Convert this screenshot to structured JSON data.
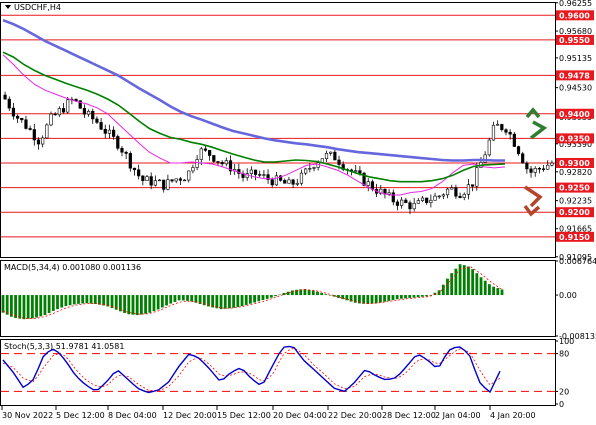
{
  "symbol_label": "USDCHF,H4",
  "colors": {
    "level_line": "#e8181e",
    "level_label_bg": "#e8181e",
    "candle": "#000000",
    "ma_fast": "#e828e8",
    "ma_mid": "#008000",
    "ma_slow": "#6666dd",
    "macd_bar": "#008000",
    "macd_signal": "#ff0000",
    "stoch_main": "#0000cc",
    "stoch_signal": "#ff0000",
    "arrow_up": "#2e7d32",
    "arrow_down": "#b5442a",
    "grid": "#c0c0c0"
  },
  "chart_data": [
    {
      "type": "candlestick",
      "title": "USDCHF,H4",
      "ylim": [
        0.9109,
        0.9625
      ],
      "y_ticks": [
        "0.96255",
        "0.9600",
        "0.95680",
        "0.9550",
        "0.95135",
        "0.9478",
        "0.94530",
        "0.9400",
        "0.93935",
        "0.9350",
        "0.93390",
        "0.9300",
        "0.92820",
        "0.9250",
        "0.92235",
        "0.9200",
        "0.91665",
        "0.9150",
        "0.91095"
      ],
      "levels": [
        {
          "value": 0.96,
          "label": "0.9600"
        },
        {
          "value": 0.955,
          "label": "0.9550"
        },
        {
          "value": 0.9478,
          "label": "0.9478"
        },
        {
          "value": 0.94,
          "label": "0.9400"
        },
        {
          "value": 0.935,
          "label": "0.9350"
        },
        {
          "value": 0.93,
          "label": "0.9300"
        },
        {
          "value": 0.925,
          "label": "0.9250"
        },
        {
          "value": 0.92,
          "label": "0.9200"
        },
        {
          "value": 0.915,
          "label": "0.9150"
        }
      ],
      "x_labels": [
        "30 Nov 2022",
        "5 Dec 12:00",
        "8 Dec 04:00",
        "12 Dec 20:00",
        "15 Dec 12:00",
        "20 Dec 04:00",
        "22 Dec 20:00",
        "28 Dec 12:00",
        "2 Jan 04:00",
        "4 Jan 20:00"
      ],
      "close_path": [
        0.943,
        0.9395,
        0.9372,
        0.9345,
        0.9388,
        0.941,
        0.943,
        0.94,
        0.9385,
        0.936,
        0.9338,
        0.93,
        0.9265,
        0.9262,
        0.9255,
        0.9268,
        0.9275,
        0.9325,
        0.9318,
        0.93,
        0.929,
        0.927,
        0.9278,
        0.9268,
        0.9262,
        0.9255,
        0.927,
        0.9298,
        0.9315,
        0.9312,
        0.929,
        0.9272,
        0.9255,
        0.924,
        0.9225,
        0.9218,
        0.9212,
        0.9225,
        0.9232,
        0.9248,
        0.924,
        0.9258,
        0.9312,
        0.9375,
        0.9372,
        0.933,
        0.928,
        0.929,
        0.93
      ],
      "series": [
        {
          "name": "MA fast",
          "values": [
            0.952,
            0.95,
            0.9478,
            0.946,
            0.9448,
            0.944,
            0.9432,
            0.9425,
            0.942,
            0.9412,
            0.94,
            0.938,
            0.936,
            0.934,
            0.9322,
            0.931,
            0.93,
            0.93,
            0.9302,
            0.93,
            0.9298,
            0.9292,
            0.9285,
            0.9278,
            0.9272,
            0.9268,
            0.9268,
            0.9275,
            0.9285,
            0.9295,
            0.9298,
            0.9292,
            0.9285,
            0.9275,
            0.9262,
            0.925,
            0.924,
            0.9235,
            0.9235,
            0.924,
            0.9242,
            0.9248,
            0.9262,
            0.928,
            0.9295,
            0.9298,
            0.9292,
            0.929,
            0.9292
          ]
        },
        {
          "name": "MA mid",
          "values": [
            0.9525,
            0.9515,
            0.95,
            0.9488,
            0.9478,
            0.947,
            0.9462,
            0.9455,
            0.9448,
            0.944,
            0.943,
            0.9418,
            0.9402,
            0.9385,
            0.937,
            0.936,
            0.9352,
            0.9348,
            0.9342,
            0.9338,
            0.9332,
            0.9325,
            0.9318,
            0.9312,
            0.9306,
            0.9302,
            0.9302,
            0.9304,
            0.9306,
            0.9305,
            0.9303,
            0.9298,
            0.9292,
            0.9285,
            0.9278,
            0.9272,
            0.9268,
            0.9264,
            0.9262,
            0.9262,
            0.9262,
            0.9264,
            0.9268,
            0.9275,
            0.9285,
            0.9293,
            0.9296,
            0.9297,
            0.9298
          ]
        },
        {
          "name": "MA slow",
          "values": [
            0.959,
            0.9582,
            0.9572,
            0.956,
            0.9548,
            0.9538,
            0.9528,
            0.9518,
            0.9508,
            0.9498,
            0.9488,
            0.9478,
            0.9465,
            0.9452,
            0.944,
            0.9428,
            0.9415,
            0.9404,
            0.9395,
            0.9388,
            0.938,
            0.9372,
            0.9365,
            0.936,
            0.9355,
            0.935,
            0.9346,
            0.9343,
            0.934,
            0.9338,
            0.9335,
            0.9332,
            0.9328,
            0.9325,
            0.9322,
            0.932,
            0.9318,
            0.9316,
            0.9314,
            0.9312,
            0.931,
            0.9308,
            0.9306,
            0.9305,
            0.9305,
            0.9306,
            0.9306,
            0.9305,
            0.9305
          ]
        }
      ]
    },
    {
      "type": "bar",
      "title": "MACD(5,34,4) 0.001080 0.001136",
      "ylim": [
        -0.008135,
        0.006764
      ],
      "y_ticks": [
        "0.006764",
        "0.00",
        "-0.008135"
      ],
      "values": [
        -0.0035,
        -0.0045,
        -0.0048,
        -0.0046,
        -0.004,
        -0.003,
        -0.0022,
        -0.0018,
        -0.0016,
        -0.0018,
        -0.0022,
        -0.003,
        -0.0038,
        -0.004,
        -0.0036,
        -0.0028,
        -0.0018,
        -0.001,
        -0.0012,
        -0.0018,
        -0.0024,
        -0.0028,
        -0.0026,
        -0.0022,
        -0.0016,
        -0.001,
        -0.0004,
        0.0004,
        0.001,
        0.0012,
        0.0008,
        0.0002,
        -0.0004,
        -0.001,
        -0.0016,
        -0.0018,
        -0.0016,
        -0.0012,
        -0.0008,
        -0.0006,
        -0.0004,
        -0.0002,
        0.001,
        0.004,
        0.0062,
        0.0055,
        0.0035,
        0.0018,
        0.0011
      ],
      "signal": [
        -0.0032,
        -0.004,
        -0.0046,
        -0.0047,
        -0.0043,
        -0.0035,
        -0.0026,
        -0.002,
        -0.0017,
        -0.0017,
        -0.002,
        -0.0026,
        -0.0034,
        -0.0038,
        -0.0037,
        -0.0031,
        -0.0022,
        -0.0014,
        -0.0012,
        -0.0015,
        -0.0021,
        -0.0026,
        -0.0026,
        -0.0023,
        -0.0018,
        -0.0013,
        -0.0006,
        0.0001,
        0.0008,
        0.0011,
        0.0009,
        0.0004,
        -0.0002,
        -0.0008,
        -0.0013,
        -0.0017,
        -0.0016,
        -0.0013,
        -0.001,
        -0.0007,
        -0.0005,
        -0.0003,
        0.0005,
        0.0028,
        0.0052,
        0.0056,
        0.0042,
        0.0025,
        0.0011
      ]
    },
    {
      "type": "line",
      "title": "Stoch(5,3,3) 51.9781 41.0581",
      "ylim": [
        0,
        100
      ],
      "y_ticks": [
        "100",
        "80",
        "20",
        "0"
      ],
      "levels": [
        80,
        20
      ],
      "series": [
        {
          "name": "main",
          "values": [
            70,
            50,
            25,
            40,
            80,
            88,
            70,
            45,
            30,
            20,
            35,
            55,
            40,
            25,
            18,
            22,
            35,
            60,
            80,
            72,
            55,
            35,
            50,
            58,
            40,
            28,
            60,
            90,
            92,
            70,
            55,
            40,
            25,
            20,
            35,
            55,
            45,
            38,
            42,
            60,
            80,
            70,
            55,
            85,
            92,
            80,
            35,
            18,
            52
          ]
        },
        {
          "name": "signal",
          "values": [
            65,
            58,
            40,
            35,
            60,
            80,
            78,
            55,
            38,
            28,
            28,
            45,
            45,
            32,
            22,
            20,
            28,
            45,
            68,
            75,
            62,
            45,
            45,
            52,
            48,
            35,
            45,
            78,
            90,
            80,
            62,
            48,
            32,
            24,
            28,
            45,
            48,
            42,
            40,
            50,
            70,
            72,
            62,
            75,
            88,
            84,
            55,
            30,
            41
          ]
        }
      ]
    }
  ]
}
